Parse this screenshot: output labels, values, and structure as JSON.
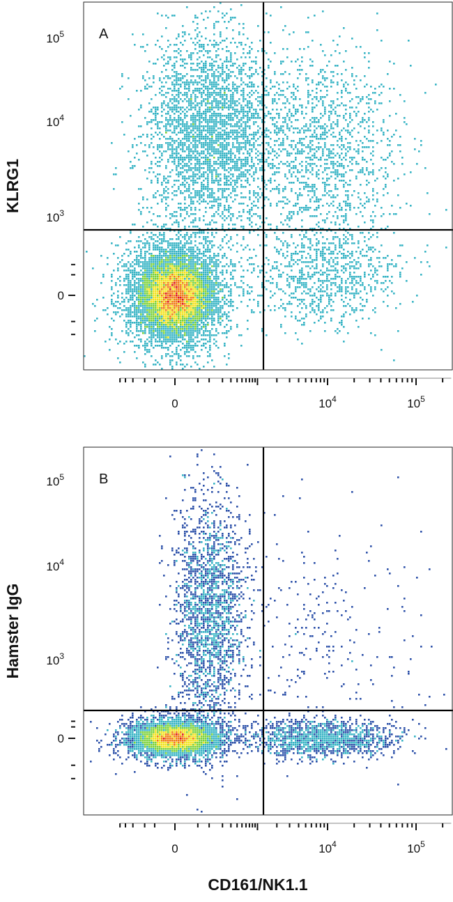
{
  "chart_data": [
    {
      "type": "scatter",
      "panel_label": "A",
      "ylabel": "KLRG1",
      "xlabel": "",
      "x_scale": "biexponential",
      "y_scale": "biexponential",
      "x_ticks": [
        {
          "value": 0,
          "base": "0",
          "exp": ""
        },
        {
          "value": 10000,
          "base": "10",
          "exp": "4"
        },
        {
          "value": 100000,
          "base": "10",
          "exp": "5"
        }
      ],
      "y_ticks": [
        {
          "value": 0,
          "base": "0",
          "exp": ""
        },
        {
          "value": 1000,
          "base": "10",
          "exp": "3"
        },
        {
          "value": 10000,
          "base": "10",
          "exp": "4"
        },
        {
          "value": 100000,
          "base": "10",
          "exp": "5"
        }
      ],
      "quadrant_gate": {
        "x": 1300,
        "y": 650
      },
      "populations": [
        {
          "name": "double-negative",
          "x_center": 0,
          "y_center": 0,
          "density": "high"
        },
        {
          "name": "KLRG1+ CD161-",
          "x_center": 100,
          "y_center": 8000,
          "density": "medium"
        },
        {
          "name": "KLRG1+ CD161+",
          "x_center": 8000,
          "y_center": 5000,
          "density": "low"
        },
        {
          "name": "KLRG1- CD161+",
          "x_center": 8000,
          "y_center": 50,
          "density": "low"
        }
      ],
      "colormap": [
        "#2b4fa8",
        "#36b3c4",
        "#7bd13a",
        "#f2e21d",
        "#f07b15",
        "#e0161b"
      ]
    },
    {
      "type": "scatter",
      "panel_label": "B",
      "ylabel": "Hamster IgG",
      "xlabel": "CD161/NK1.1",
      "x_scale": "biexponential",
      "y_scale": "biexponential",
      "x_ticks": [
        {
          "value": 0,
          "base": "0",
          "exp": ""
        },
        {
          "value": 10000,
          "base": "10",
          "exp": "4"
        },
        {
          "value": 100000,
          "base": "10",
          "exp": "5"
        }
      ],
      "y_ticks": [
        {
          "value": 0,
          "base": "0",
          "exp": ""
        },
        {
          "value": 1000,
          "base": "10",
          "exp": "3"
        },
        {
          "value": 10000,
          "base": "10",
          "exp": "4"
        },
        {
          "value": 100000,
          "base": "10",
          "exp": "5"
        }
      ],
      "quadrant_gate": {
        "x": 1300,
        "y": 300
      },
      "populations": [
        {
          "name": "double-negative",
          "x_center": 0,
          "y_center": 0,
          "density": "high"
        },
        {
          "name": "IgG+ CD161-",
          "x_center": 100,
          "y_center": 3000,
          "density": "low"
        },
        {
          "name": "IgG- CD161+",
          "x_center": 8000,
          "y_center": 0,
          "density": "medium"
        },
        {
          "name": "IgG+ CD161+",
          "x_center": 8000,
          "y_center": 2000,
          "density": "very-low"
        }
      ],
      "colormap": [
        "#2b4fa8",
        "#36b3c4",
        "#7bd13a",
        "#f2e21d",
        "#f07b15",
        "#e0161b"
      ]
    }
  ]
}
